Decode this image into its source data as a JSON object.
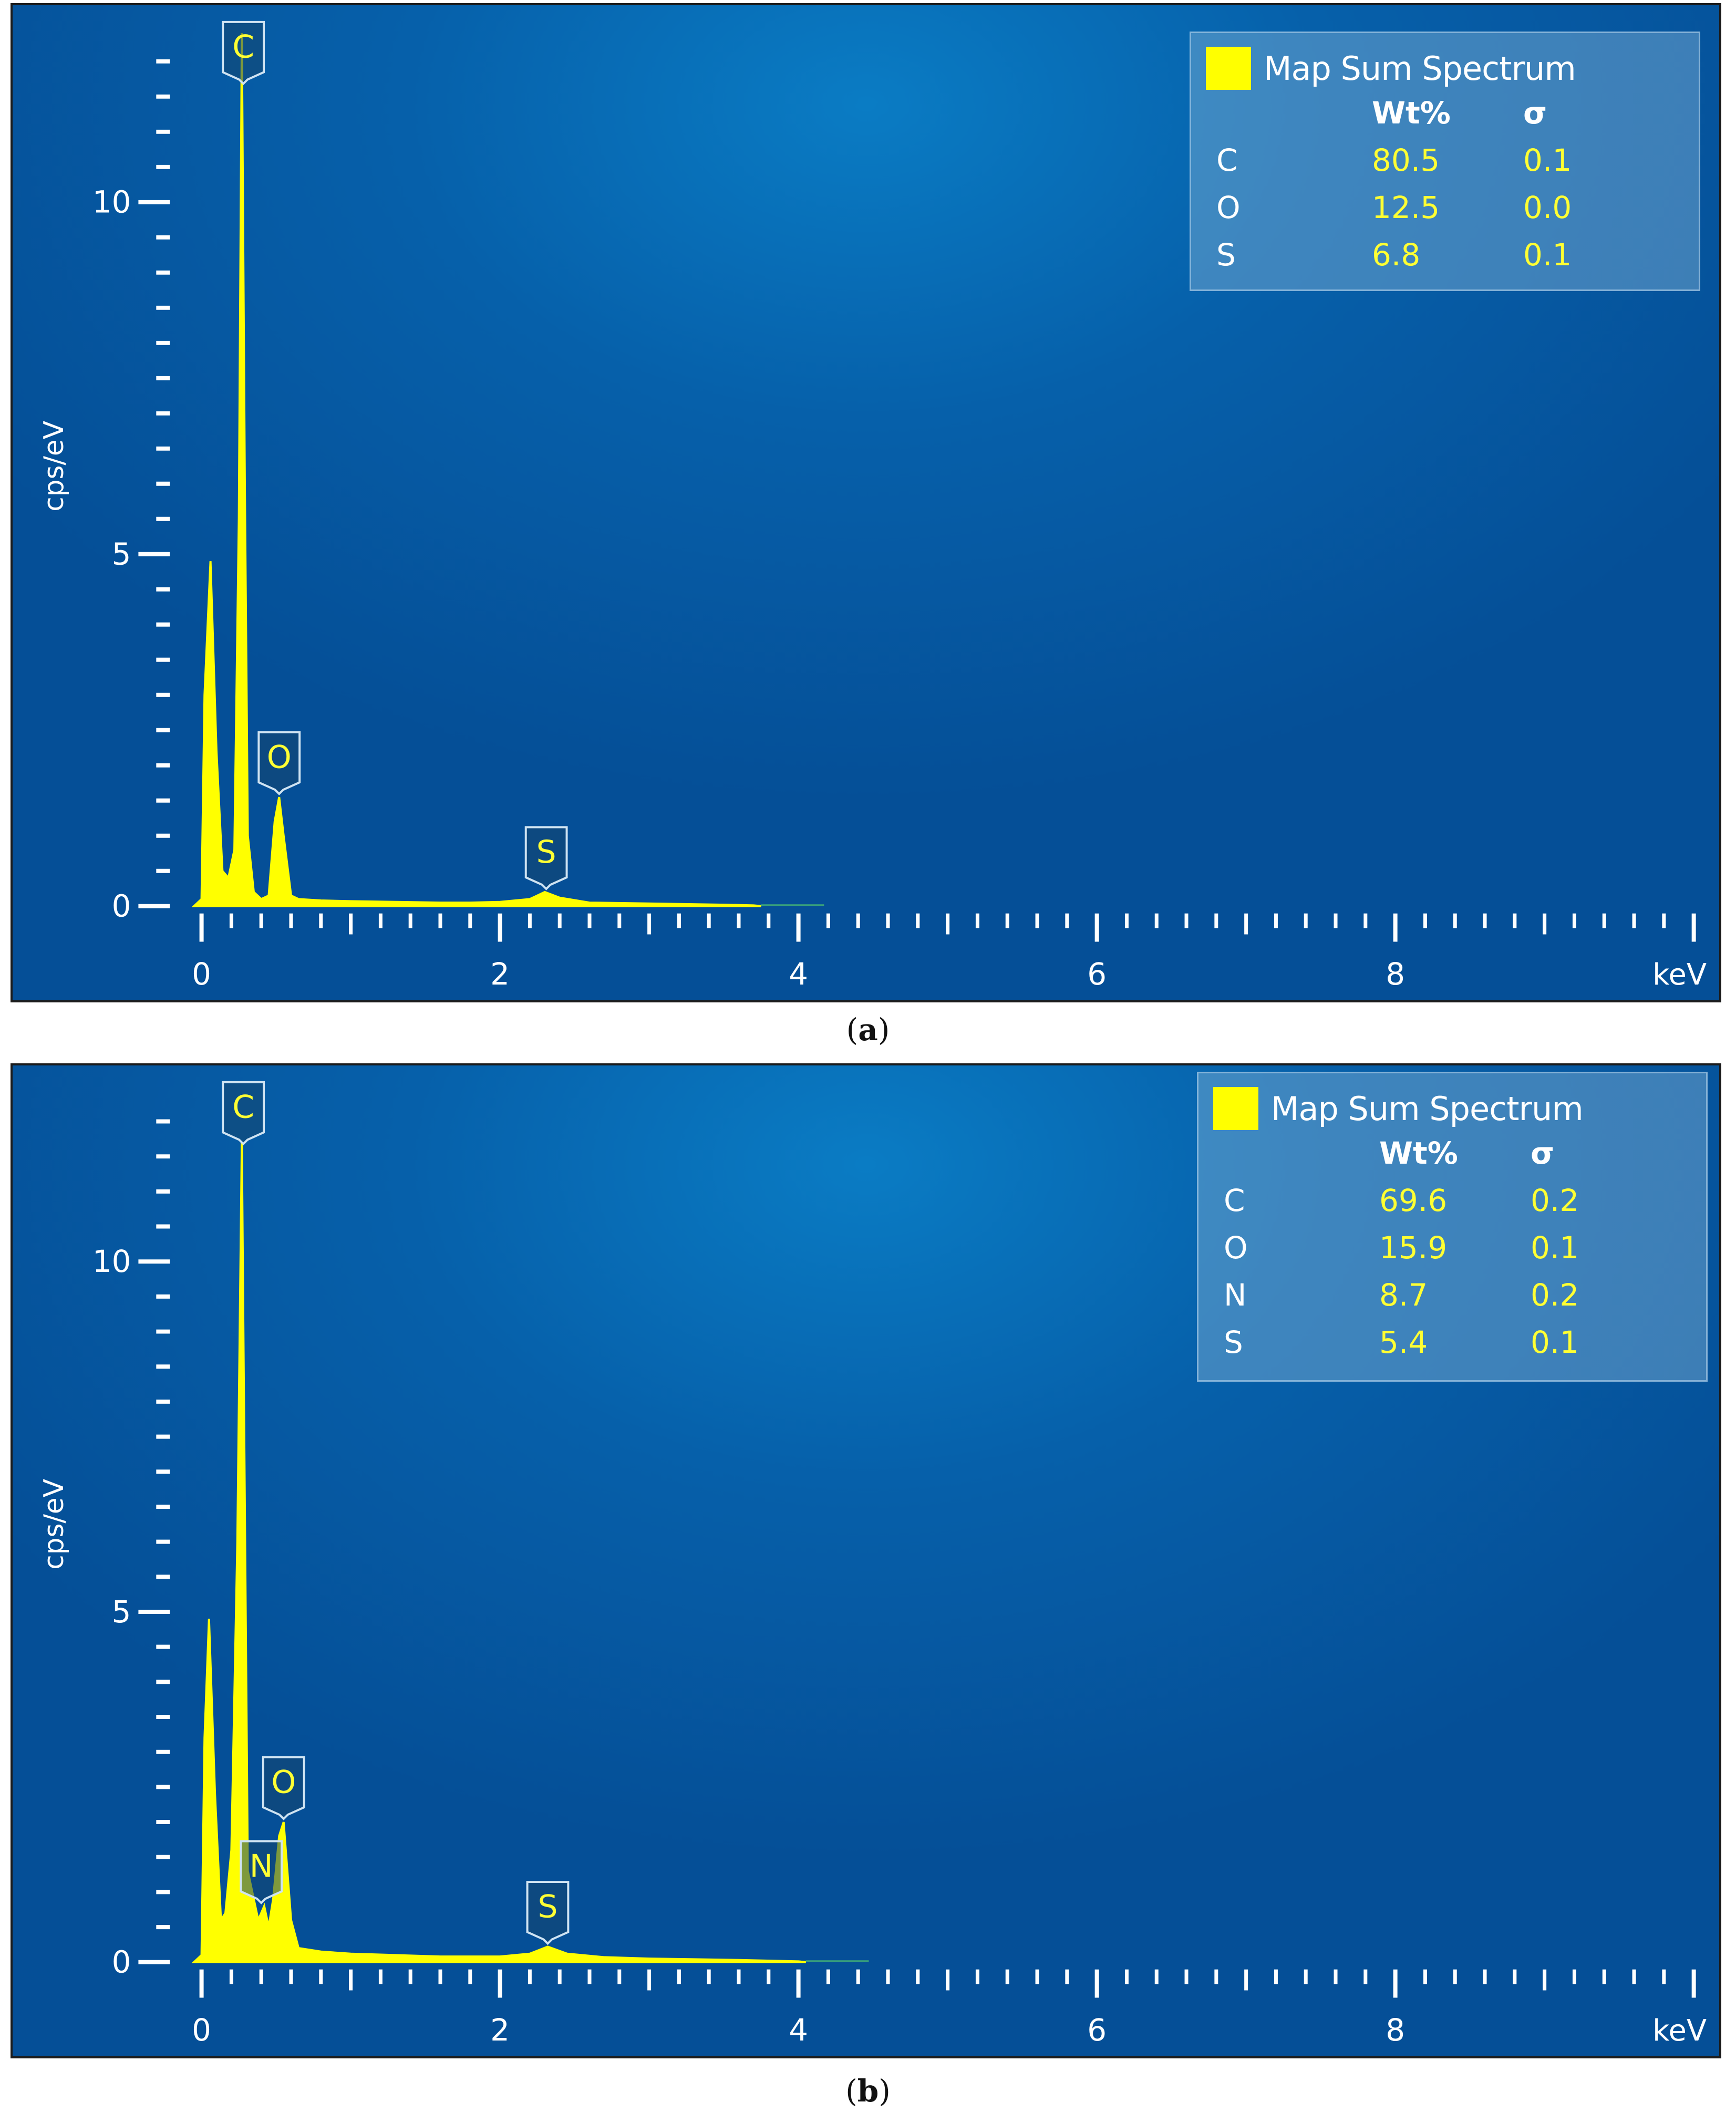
{
  "chart_data": [
    {
      "type": "area",
      "panel": "a",
      "xlabel": "keV",
      "ylabel": "cps/eV",
      "xlim": [
        -0.1,
        10.1
      ],
      "ylim": [
        0,
        12.5
      ],
      "x_ticks": [
        0,
        2,
        4,
        6,
        8
      ],
      "y_ticks": [
        0,
        5,
        10
      ],
      "series_color": "#ffff00",
      "spectrum": {
        "x": [
          -0.05,
          0.0,
          0.02,
          0.06,
          0.1,
          0.14,
          0.18,
          0.22,
          0.25,
          0.27,
          0.29,
          0.31,
          0.35,
          0.4,
          0.45,
          0.49,
          0.52,
          0.55,
          0.6,
          0.65,
          0.8,
          1.0,
          1.3,
          1.6,
          1.8,
          2.0,
          2.2,
          2.3,
          2.4,
          2.6,
          2.9,
          3.2,
          3.5,
          3.7,
          3.75
        ],
        "y": [
          0,
          0.1,
          3.0,
          4.9,
          2.2,
          0.5,
          0.4,
          0.8,
          5.5,
          12.4,
          6.0,
          1.0,
          0.2,
          0.1,
          0.15,
          1.2,
          1.55,
          1.0,
          0.15,
          0.1,
          0.08,
          0.07,
          0.06,
          0.05,
          0.05,
          0.06,
          0.1,
          0.2,
          0.12,
          0.05,
          0.04,
          0.03,
          0.02,
          0.01,
          0
        ]
      },
      "peak_labels": [
        {
          "label": "C",
          "x": 0.28,
          "y": 12.4
        },
        {
          "label": "O",
          "x": 0.52,
          "y": 1.55
        },
        {
          "label": "S",
          "x": 2.31,
          "y": 0.2
        }
      ],
      "legend": {
        "title": "Map Sum Spectrum",
        "col_wt": "Wt%",
        "col_sigma": "σ",
        "rows": [
          {
            "element": "C",
            "wt": "80.5",
            "sigma": "0.1"
          },
          {
            "element": "O",
            "wt": "12.5",
            "sigma": "0.0"
          },
          {
            "element": "S",
            "wt": "6.8",
            "sigma": "0.1"
          }
        ]
      },
      "caption_letter": "a"
    },
    {
      "type": "area",
      "panel": "b",
      "xlabel": "keV",
      "ylabel": "cps/eV",
      "xlim": [
        -0.1,
        10.1
      ],
      "ylim": [
        0,
        12.5
      ],
      "x_ticks": [
        0,
        2,
        4,
        6,
        8
      ],
      "y_ticks": [
        0,
        5,
        10
      ],
      "series_color": "#ffff00",
      "spectrum": {
        "x": [
          -0.05,
          0.0,
          0.02,
          0.05,
          0.09,
          0.13,
          0.16,
          0.2,
          0.24,
          0.27,
          0.29,
          0.31,
          0.34,
          0.38,
          0.42,
          0.45,
          0.48,
          0.52,
          0.55,
          0.6,
          0.65,
          0.8,
          1.0,
          1.3,
          1.6,
          1.8,
          2.0,
          2.2,
          2.32,
          2.45,
          2.7,
          3.0,
          3.3,
          3.6,
          4.0,
          4.05
        ],
        "y": [
          0,
          0.1,
          3.2,
          4.9,
          2.4,
          0.6,
          0.7,
          1.6,
          6.0,
          11.7,
          6.5,
          1.3,
          1.0,
          0.6,
          0.8,
          0.5,
          0.9,
          1.8,
          2.0,
          0.6,
          0.2,
          0.15,
          0.12,
          0.1,
          0.08,
          0.08,
          0.08,
          0.12,
          0.22,
          0.12,
          0.07,
          0.05,
          0.04,
          0.03,
          0.01,
          0
        ]
      },
      "peak_labels": [
        {
          "label": "C",
          "x": 0.28,
          "y": 11.7
        },
        {
          "label": "O",
          "x": 0.55,
          "y": 2.0
        },
        {
          "label": "N",
          "x": 0.4,
          "y": 0.8
        },
        {
          "label": "S",
          "x": 2.32,
          "y": 0.22
        }
      ],
      "legend": {
        "title": "Map Sum Spectrum",
        "col_wt": "Wt%",
        "col_sigma": "σ",
        "rows": [
          {
            "element": "C",
            "wt": "69.6",
            "sigma": "0.2"
          },
          {
            "element": "O",
            "wt": "15.9",
            "sigma": "0.1"
          },
          {
            "element": "N",
            "wt": "8.7",
            "sigma": "0.2"
          },
          {
            "element": "S",
            "wt": "5.4",
            "sigma": "0.1"
          }
        ]
      },
      "caption_letter": "b"
    }
  ]
}
